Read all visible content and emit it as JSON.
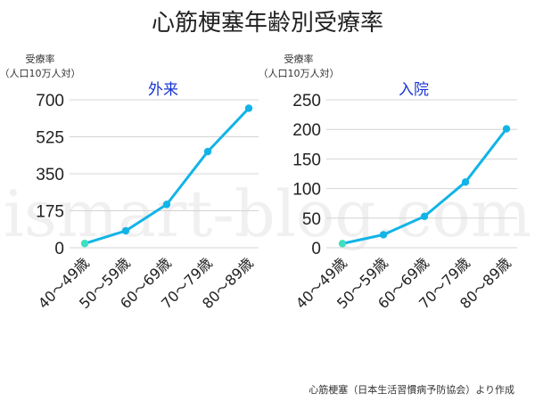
{
  "title": "心筋梗塞年齢別受療率",
  "source_note": "心筋梗塞（日本生活習慣病予防協会）より作成",
  "watermark": "ismart-blog.com",
  "colors": {
    "line": "#12b4e6",
    "first_point": "#3ee0c0",
    "panel_label": "#1a35d6",
    "grid": "#d4d4d4"
  },
  "chart_data": [
    {
      "type": "line",
      "title": "外来",
      "ylabel": "受療率\n（人口10万人対）",
      "categories": [
        "40～49歳",
        "50～59歳",
        "60～69歳",
        "70～79歳",
        "80～89歳"
      ],
      "series": [
        {
          "values": [
            20,
            80,
            205,
            455,
            660
          ]
        }
      ],
      "ylim": [
        0,
        700
      ],
      "yticks": [
        0,
        175,
        350,
        525,
        700
      ],
      "grid": true
    },
    {
      "type": "line",
      "title": "入院",
      "ylabel": "受療率\n（人口10万人対）",
      "categories": [
        "40～49歳",
        "50～59歳",
        "60～69歳",
        "70～79歳",
        "80～89歳"
      ],
      "series": [
        {
          "values": [
            7,
            22,
            53,
            111,
            201
          ]
        }
      ],
      "ylim": [
        0,
        250
      ],
      "yticks": [
        0,
        50,
        100,
        150,
        200,
        250
      ],
      "grid": true
    }
  ]
}
